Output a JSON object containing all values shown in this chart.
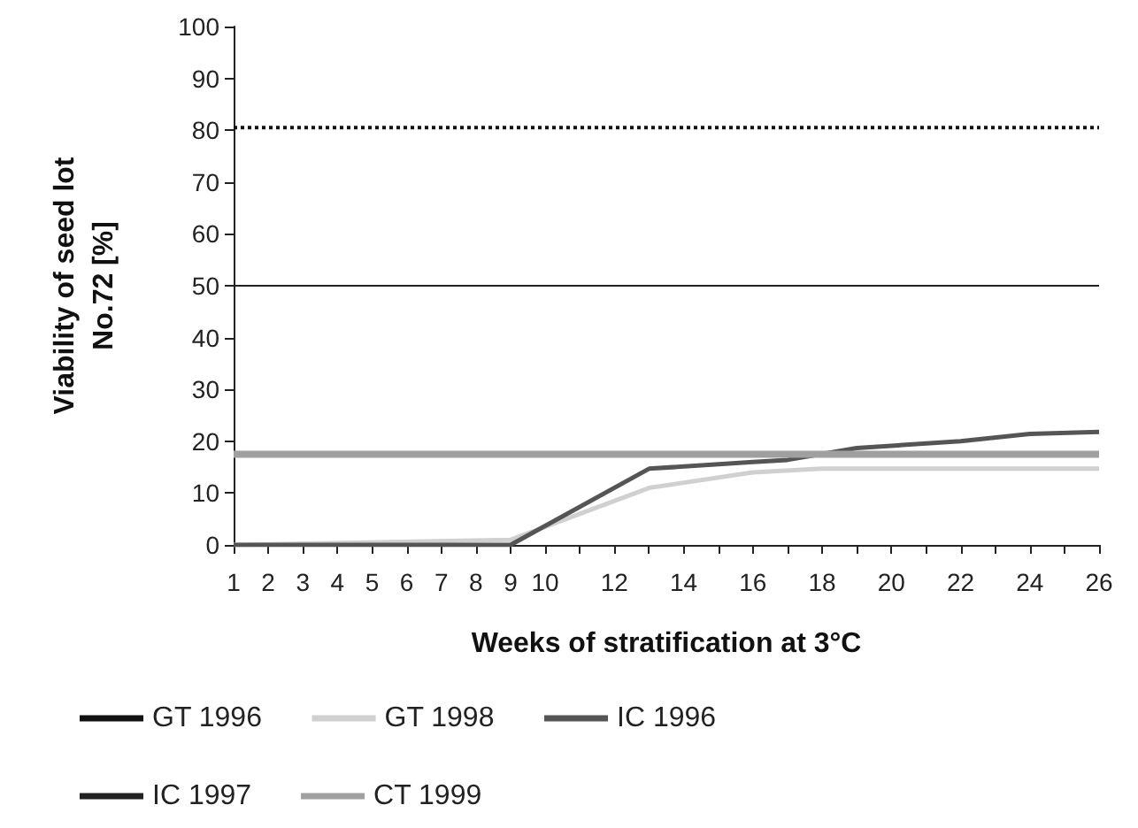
{
  "chart_data": {
    "type": "line",
    "xlabel": "Weeks of stratification at 3°C",
    "ylabel": "Viability of seed lot\nNo.72 [%]",
    "xlim": [
      1,
      26
    ],
    "xticks": [
      1,
      2,
      3,
      4,
      5,
      6,
      7,
      8,
      9,
      10,
      {
        "value": 11,
        "label": null
      },
      12,
      {
        "value": 13,
        "label": null
      },
      14,
      {
        "value": 15,
        "label": null
      },
      16,
      {
        "value": 17,
        "label": null
      },
      18,
      {
        "value": 19,
        "label": null
      },
      20,
      {
        "value": 21,
        "label": null
      },
      22,
      {
        "value": 23,
        "label": null
      },
      24,
      {
        "value": 25,
        "label": null
      },
      26
    ],
    "ylim": [
      0,
      100
    ],
    "yticks": [
      0,
      10,
      20,
      30,
      40,
      50,
      60,
      70,
      80,
      90,
      100
    ],
    "grid": false,
    "legend": "bottom",
    "marker": "none",
    "series": [
      {
        "name": "GT 1996",
        "color": "#111111",
        "line_style": "dotted",
        "x": [
          1,
          26
        ],
        "values": [
          80.5,
          80.5
        ]
      },
      {
        "name": "GT 1998",
        "color": "#d0d0d0",
        "line_style": "solid",
        "x": [
          1,
          9,
          13,
          16,
          18,
          26
        ],
        "values": [
          0,
          1,
          11,
          14,
          14.7,
          14.7
        ]
      },
      {
        "name": "IC 1996",
        "color": "#555555",
        "line_style": "solid",
        "x": [
          1,
          9,
          13,
          16,
          17,
          19,
          22,
          24,
          26
        ],
        "values": [
          0,
          0,
          14.7,
          16,
          16.4,
          18.7,
          20,
          21.4,
          21.8
        ]
      },
      {
        "name": "IC 1997",
        "color": "#222222",
        "line_style": "solid",
        "x": [
          1,
          26
        ],
        "values": [
          50,
          50
        ]
      },
      {
        "name": "CT 1999",
        "color": "#a0a0a0",
        "line_style": "solid",
        "x": [
          1,
          26
        ],
        "values": [
          17.5,
          17.5
        ]
      }
    ]
  }
}
